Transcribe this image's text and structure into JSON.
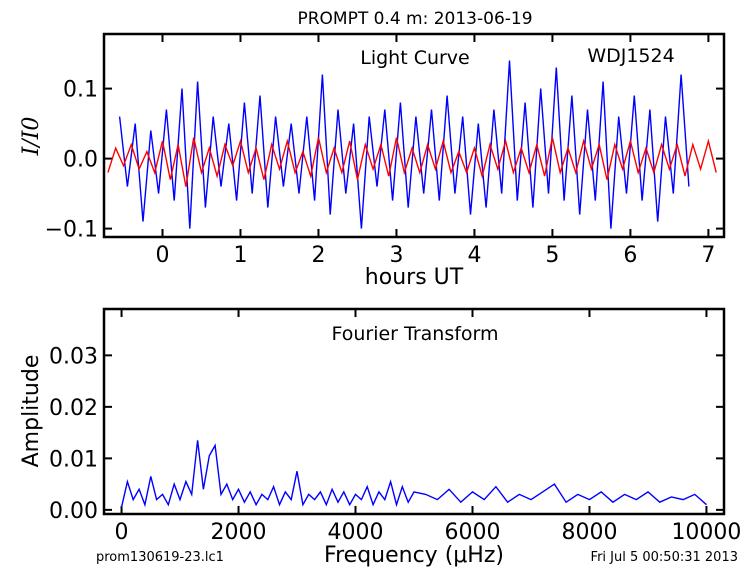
{
  "figure": {
    "title": "PROMPT 0.4 m:  2013-06-19",
    "footer_left": "prom130619-23.lc1",
    "footer_right": "Fri Jul  5 00:50:31 2013"
  },
  "chart_data": [
    {
      "type": "line",
      "title": "Light Curve",
      "annotation": "WDJ1524",
      "xlabel": "hours UT",
      "ylabel": "I/I0",
      "xlim": [
        -0.75,
        7.2
      ],
      "ylim": [
        -0.112,
        0.178
      ],
      "xticks": [
        0,
        1,
        2,
        3,
        4,
        5,
        6,
        7
      ],
      "yticks": [
        -0.1,
        0.0,
        0.1
      ],
      "ytick_labels": [
        "−0.1",
        "0.0",
        "0.1"
      ],
      "grid": false,
      "series": [
        {
          "color": "#0000ff",
          "x": [
            -0.55,
            -0.45,
            -0.35,
            -0.25,
            -0.15,
            -0.05,
            0.05,
            0.15,
            0.25,
            0.35,
            0.45,
            0.55,
            0.65,
            0.75,
            0.85,
            0.95,
            1.05,
            1.15,
            1.25,
            1.35,
            1.45,
            1.55,
            1.65,
            1.75,
            1.85,
            1.95,
            2.05,
            2.15,
            2.25,
            2.35,
            2.45,
            2.55,
            2.65,
            2.75,
            2.85,
            2.95,
            3.05,
            3.15,
            3.25,
            3.35,
            3.45,
            3.55,
            3.65,
            3.75,
            3.85,
            3.95,
            4.05,
            4.15,
            4.25,
            4.35,
            4.45,
            4.55,
            4.65,
            4.75,
            4.85,
            4.95,
            5.05,
            5.15,
            5.25,
            5.35,
            5.45,
            5.55,
            5.65,
            5.75,
            5.85,
            5.95,
            6.05,
            6.15,
            6.25,
            6.35,
            6.45,
            6.55,
            6.65,
            6.75
          ],
          "y": [
            0.06,
            -0.04,
            0.05,
            -0.09,
            0.04,
            -0.05,
            0.07,
            -0.06,
            0.1,
            -0.1,
            0.11,
            -0.07,
            0.06,
            -0.04,
            0.05,
            -0.06,
            0.08,
            -0.05,
            0.09,
            -0.07,
            0.06,
            -0.04,
            0.05,
            -0.05,
            0.06,
            -0.06,
            0.12,
            -0.08,
            0.07,
            -0.05,
            0.05,
            -0.1,
            0.06,
            -0.04,
            0.07,
            -0.06,
            0.08,
            -0.07,
            0.06,
            -0.05,
            0.07,
            -0.06,
            0.09,
            -0.05,
            0.06,
            -0.08,
            0.05,
            -0.07,
            0.07,
            -0.05,
            0.14,
            -0.06,
            0.08,
            -0.07,
            0.1,
            -0.05,
            0.13,
            -0.06,
            0.09,
            -0.08,
            0.07,
            -0.06,
            0.11,
            -0.1,
            0.06,
            -0.05,
            0.09,
            -0.06,
            0.07,
            -0.09,
            0.06,
            -0.05,
            0.12,
            -0.04
          ]
        },
        {
          "color": "#ff0000",
          "x": [
            -0.7,
            -0.6,
            -0.5,
            -0.4,
            -0.3,
            -0.2,
            -0.1,
            0.0,
            0.1,
            0.2,
            0.3,
            0.4,
            0.5,
            0.6,
            0.7,
            0.8,
            0.9,
            1.0,
            1.1,
            1.2,
            1.3,
            1.4,
            1.5,
            1.6,
            1.7,
            1.8,
            1.9,
            2.0,
            2.1,
            2.2,
            2.3,
            2.4,
            2.5,
            2.6,
            2.7,
            2.8,
            2.9,
            3.0,
            3.1,
            3.2,
            3.3,
            3.4,
            3.5,
            3.6,
            3.7,
            3.8,
            3.9,
            4.0,
            4.1,
            4.2,
            4.3,
            4.4,
            4.5,
            4.6,
            4.7,
            4.8,
            4.9,
            5.0,
            5.1,
            5.2,
            5.3,
            5.4,
            5.5,
            5.6,
            5.7,
            5.8,
            5.9,
            6.0,
            6.1,
            6.2,
            6.3,
            6.4,
            6.5,
            6.6,
            6.7,
            6.8,
            6.9,
            7.0,
            7.1
          ],
          "y": [
            -0.02,
            0.015,
            -0.01,
            0.02,
            -0.015,
            0.01,
            -0.02,
            0.025,
            -0.03,
            0.02,
            -0.04,
            0.03,
            -0.02,
            0.015,
            -0.025,
            0.02,
            -0.01,
            0.025,
            -0.02,
            0.015,
            -0.03,
            0.02,
            -0.015,
            0.025,
            -0.02,
            0.01,
            -0.025,
            0.03,
            -0.02,
            0.015,
            -0.02,
            0.025,
            -0.03,
            0.02,
            -0.015,
            0.02,
            -0.025,
            0.03,
            -0.02,
            0.015,
            -0.02,
            0.02,
            -0.015,
            0.025,
            -0.02,
            0.01,
            -0.02,
            0.015,
            -0.025,
            0.02,
            -0.015,
            0.025,
            -0.02,
            0.015,
            -0.02,
            0.02,
            -0.025,
            0.03,
            -0.02,
            0.015,
            -0.02,
            0.025,
            -0.015,
            0.02,
            -0.03,
            0.02,
            -0.015,
            0.025,
            -0.02,
            0.015,
            -0.02,
            0.02,
            -0.015,
            0.02,
            -0.025,
            0.02,
            -0.015,
            0.025,
            -0.02
          ]
        }
      ]
    },
    {
      "type": "line",
      "title": "Fourier Transform",
      "xlabel": "Frequency (μHz)",
      "ylabel": "Amplitude",
      "xlim": [
        -300,
        10300
      ],
      "ylim": [
        -0.0008,
        0.039
      ],
      "xticks": [
        0,
        2000,
        4000,
        6000,
        8000,
        10000
      ],
      "yticks": [
        0.0,
        0.01,
        0.02,
        0.03
      ],
      "ytick_labels": [
        "0.00",
        "0.01",
        "0.02",
        "0.03"
      ],
      "grid": false,
      "series": [
        {
          "color": "#0000ff",
          "x": [
            0,
            100,
            200,
            300,
            400,
            500,
            600,
            700,
            800,
            900,
            1000,
            1100,
            1200,
            1300,
            1400,
            1500,
            1600,
            1700,
            1800,
            1900,
            2000,
            2100,
            2200,
            2300,
            2400,
            2500,
            2600,
            2700,
            2800,
            2900,
            3000,
            3100,
            3200,
            3300,
            3400,
            3500,
            3600,
            3700,
            3800,
            3900,
            4000,
            4100,
            4200,
            4300,
            4400,
            4500,
            4600,
            4700,
            4800,
            4900,
            5000,
            5200,
            5400,
            5600,
            5800,
            6000,
            6200,
            6400,
            6600,
            6800,
            7000,
            7200,
            7400,
            7600,
            7800,
            8000,
            8200,
            8400,
            8600,
            8800,
            9000,
            9200,
            9400,
            9600,
            9800,
            10000
          ],
          "y": [
            0.0005,
            0.0055,
            0.002,
            0.004,
            0.001,
            0.0065,
            0.002,
            0.003,
            0.001,
            0.005,
            0.002,
            0.0055,
            0.003,
            0.0135,
            0.004,
            0.0105,
            0.0125,
            0.003,
            0.005,
            0.002,
            0.004,
            0.0015,
            0.0035,
            0.001,
            0.003,
            0.002,
            0.0045,
            0.001,
            0.0035,
            0.002,
            0.0075,
            0.001,
            0.003,
            0.002,
            0.0035,
            0.001,
            0.004,
            0.0015,
            0.0035,
            0.001,
            0.003,
            0.002,
            0.0045,
            0.001,
            0.0035,
            0.002,
            0.0055,
            0.001,
            0.0045,
            0.0015,
            0.0035,
            0.003,
            0.002,
            0.004,
            0.0015,
            0.0035,
            0.002,
            0.0045,
            0.0015,
            0.003,
            0.002,
            0.0035,
            0.005,
            0.0015,
            0.003,
            0.002,
            0.0035,
            0.0015,
            0.003,
            0.002,
            0.0035,
            0.0015,
            0.0025,
            0.002,
            0.003,
            0.001
          ]
        }
      ]
    }
  ]
}
